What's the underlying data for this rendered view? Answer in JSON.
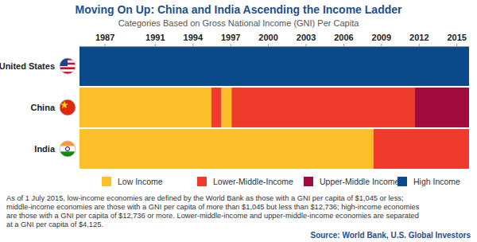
{
  "chart_data": {
    "type": "timeline",
    "title": "Moving On Up: China and India Ascending the Income Ladder",
    "subtitle": "Categories Based on Gross National Income (GNI) Per Capita",
    "orientation": "horizontal",
    "categories": [
      "United States",
      "China",
      "India"
    ],
    "series": [
      {
        "name": "Low Income",
        "color": "#fcbf29"
      },
      {
        "name": "Lower-Middle-Income",
        "color": "#ee3b2b"
      },
      {
        "name": "Upper-Middle Income",
        "color": "#a10a3c"
      },
      {
        "name": "High Income",
        "color": "#0b4a8a"
      }
    ],
    "bars": [
      [
        {
          "level": "High Income",
          "start": 1985,
          "end": 2016
        }
      ],
      [
        {
          "level": "Low Income",
          "start": 1985,
          "end": 1995.5
        },
        {
          "level": "Lower-Middle-Income",
          "start": 1995.5,
          "end": 1996.3
        },
        {
          "level": "Low Income",
          "start": 1996.3,
          "end": 1997.1
        },
        {
          "level": "Lower-Middle-Income",
          "start": 1997.1,
          "end": 2011.7
        },
        {
          "level": "Upper-Middle Income",
          "start": 2011.7,
          "end": 2016
        }
      ],
      [
        {
          "level": "Low Income",
          "start": 1985,
          "end": 2008.4
        },
        {
          "level": "Lower-Middle-Income",
          "start": 2008.4,
          "end": 2016
        }
      ]
    ],
    "xlim": [
      1985,
      2016
    ],
    "xticks": [
      1987,
      1991,
      1994,
      1997,
      2000,
      2003,
      2006,
      2009,
      2012,
      2015
    ],
    "legend": "bottom",
    "note": [
      "As of 1 July 2015, low-income economies are defined by the World Bank as those with a GNI per capita of $1,045 or less;",
      "middle-income economies are those with a GNI per capita of more than $1,045 but less than $12,736; high-income economies",
      "are those with a GNI per capita of $12,736 or more. Lower-middle-income and upper-middle-income economies are separated",
      "at a GNI per capita of $4,125."
    ],
    "source": "Source: World Bank, U.S. Global Investors"
  }
}
